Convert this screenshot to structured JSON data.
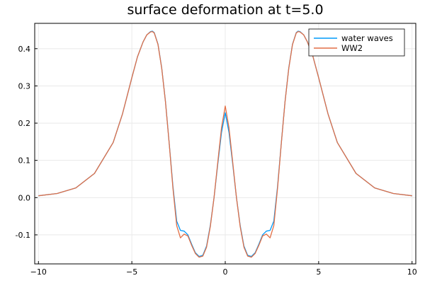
{
  "chart_data": {
    "type": "line",
    "title": "surface deformation at t=5.0",
    "xlabel": "",
    "ylabel": "",
    "xlim": [
      -10.2,
      10.2
    ],
    "ylim": [
      -0.178,
      0.468
    ],
    "x_ticks": [
      -10,
      -5,
      0,
      5,
      10
    ],
    "x_tick_labels": [
      "−10",
      "−5",
      "0",
      "5",
      "10"
    ],
    "y_ticks": [
      -0.1,
      0.0,
      0.1,
      0.2,
      0.3,
      0.4
    ],
    "y_tick_labels": [
      "-0.1",
      "0.0",
      "0.1",
      "0.2",
      "0.3",
      "0.4"
    ],
    "grid": true,
    "legend_position": "top-right",
    "series": [
      {
        "name": "water waves",
        "color": "#009AFA",
        "x": [
          -10,
          -9,
          -8,
          -7,
          -6,
          -5.5,
          -5,
          -4.7,
          -4.4,
          -4.2,
          -4.0,
          -3.9,
          -3.8,
          -3.6,
          -3.4,
          -3.2,
          -3.0,
          -2.8,
          -2.6,
          -2.4,
          -2.2,
          -2.0,
          -1.8,
          -1.6,
          -1.4,
          -1.2,
          -1.0,
          -0.8,
          -0.6,
          -0.4,
          -0.2,
          0.0,
          0.2,
          0.4,
          0.6,
          0.8,
          1.0,
          1.2,
          1.4,
          1.6,
          1.8,
          2.0,
          2.2,
          2.4,
          2.6,
          2.8,
          3.0,
          3.2,
          3.4,
          3.6,
          3.8,
          3.9,
          4.0,
          4.2,
          4.4,
          4.7,
          5.0,
          5.5,
          6,
          7,
          8,
          9,
          10
        ],
        "y": [
          0.005,
          0.011,
          0.026,
          0.065,
          0.148,
          0.225,
          0.322,
          0.378,
          0.418,
          0.437,
          0.446,
          0.447,
          0.443,
          0.412,
          0.348,
          0.258,
          0.146,
          0.03,
          -0.063,
          -0.088,
          -0.09,
          -0.1,
          -0.125,
          -0.148,
          -0.158,
          -0.155,
          -0.13,
          -0.075,
          0.0,
          0.09,
          0.175,
          0.228,
          0.175,
          0.09,
          0.0,
          -0.075,
          -0.13,
          -0.155,
          -0.158,
          -0.148,
          -0.125,
          -0.1,
          -0.09,
          -0.088,
          -0.063,
          0.03,
          0.146,
          0.258,
          0.348,
          0.412,
          0.443,
          0.447,
          0.446,
          0.437,
          0.418,
          0.378,
          0.322,
          0.225,
          0.148,
          0.065,
          0.026,
          0.011,
          0.005
        ]
      },
      {
        "name": "WW2",
        "color": "#E26F46",
        "x": [
          -10,
          -9,
          -8,
          -7,
          -6,
          -5.5,
          -5,
          -4.7,
          -4.4,
          -4.2,
          -4.0,
          -3.9,
          -3.8,
          -3.6,
          -3.4,
          -3.2,
          -3.0,
          -2.8,
          -2.6,
          -2.4,
          -2.2,
          -2.0,
          -1.8,
          -1.6,
          -1.4,
          -1.2,
          -1.0,
          -0.8,
          -0.6,
          -0.4,
          -0.2,
          0.0,
          0.2,
          0.4,
          0.6,
          0.8,
          1.0,
          1.2,
          1.4,
          1.6,
          1.8,
          2.0,
          2.2,
          2.4,
          2.6,
          2.8,
          3.0,
          3.2,
          3.4,
          3.6,
          3.8,
          3.9,
          4.0,
          4.2,
          4.4,
          4.7,
          5.0,
          5.5,
          6,
          7,
          8,
          9,
          10
        ],
        "y": [
          0.005,
          0.011,
          0.026,
          0.065,
          0.148,
          0.225,
          0.322,
          0.378,
          0.418,
          0.437,
          0.445,
          0.446,
          0.442,
          0.411,
          0.347,
          0.257,
          0.145,
          0.025,
          -0.075,
          -0.108,
          -0.098,
          -0.103,
          -0.128,
          -0.15,
          -0.16,
          -0.157,
          -0.133,
          -0.078,
          0.0,
          0.095,
          0.188,
          0.246,
          0.188,
          0.095,
          0.0,
          -0.078,
          -0.133,
          -0.157,
          -0.16,
          -0.15,
          -0.128,
          -0.103,
          -0.098,
          -0.108,
          -0.075,
          0.025,
          0.145,
          0.257,
          0.347,
          0.411,
          0.442,
          0.446,
          0.445,
          0.437,
          0.418,
          0.378,
          0.322,
          0.225,
          0.148,
          0.065,
          0.026,
          0.011,
          0.005
        ]
      }
    ]
  }
}
